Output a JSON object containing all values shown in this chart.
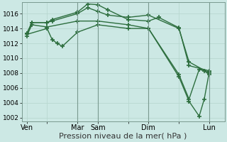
{
  "background_color": "#cce8e4",
  "grid_color": "#b8d8d0",
  "line_color": "#2d6e3e",
  "marker": "+",
  "markersize": 4,
  "linewidth": 1.0,
  "xlabel": "Pression niveau de la mer( hPa )",
  "xlabel_fontsize": 8,
  "ylim": [
    1001.5,
    1017.5
  ],
  "yticks": [
    1002,
    1004,
    1006,
    1008,
    1010,
    1012,
    1014,
    1016
  ],
  "ytick_fontsize": 6.5,
  "xtick_labels": [
    "Ven",
    "",
    "Mar",
    "Sam",
    "",
    "Dim",
    "",
    "Lun"
  ],
  "xtick_positions": [
    0,
    2,
    5,
    7,
    10,
    12,
    15,
    18
  ],
  "vlines": [
    5,
    7,
    12,
    18
  ],
  "series": [
    {
      "x": [
        0,
        0.5,
        2,
        2.5,
        5,
        6,
        7,
        8,
        10,
        12,
        13,
        15,
        16,
        18
      ],
      "y": [
        1013.3,
        1014.8,
        1014.8,
        1015.2,
        1016.2,
        1017.3,
        1017.2,
        1016.5,
        1015.2,
        1015.0,
        1015.5,
        1014.1,
        1009.0,
        1008.3
      ]
    },
    {
      "x": [
        0,
        0.5,
        2,
        2.5,
        5,
        6,
        7,
        8,
        10,
        12,
        15,
        16,
        18
      ],
      "y": [
        1013.3,
        1014.8,
        1014.8,
        1015.0,
        1016.0,
        1016.8,
        1016.3,
        1015.8,
        1015.5,
        1015.8,
        1014.0,
        1009.5,
        1008.0
      ]
    },
    {
      "x": [
        0,
        0.5,
        2,
        5,
        7,
        10,
        12,
        15,
        16,
        17,
        17.5,
        18
      ],
      "y": [
        1013.0,
        1014.5,
        1014.2,
        1015.0,
        1015.0,
        1014.5,
        1014.0,
        1007.5,
        1004.2,
        1002.2,
        1004.5,
        1008.2
      ]
    },
    {
      "x": [
        0,
        2,
        2.5,
        3,
        3.5,
        5,
        7,
        10,
        12,
        15,
        16,
        17,
        17.5,
        18
      ],
      "y": [
        1013.2,
        1014.0,
        1012.5,
        1012.0,
        1011.6,
        1013.5,
        1014.5,
        1014.0,
        1014.0,
        1007.8,
        1004.5,
        1008.5,
        1008.3,
        1007.8
      ]
    }
  ]
}
